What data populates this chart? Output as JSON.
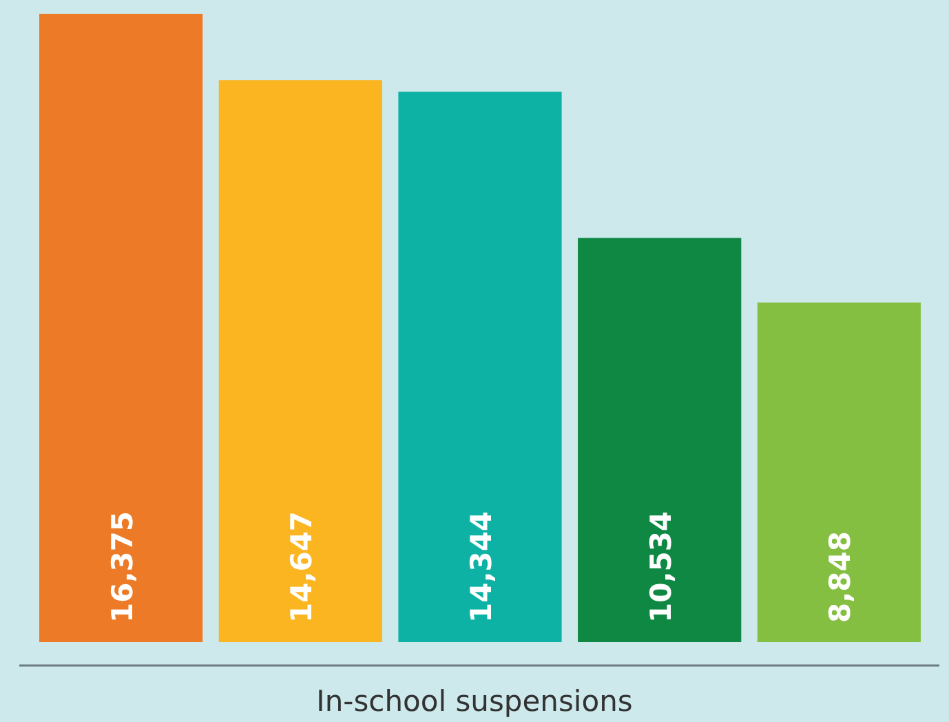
{
  "chart_data": {
    "type": "bar",
    "xlabel": "In-school suspensions",
    "categories": [
      null,
      null,
      null,
      null,
      null
    ],
    "values": [
      16375,
      14647,
      14344,
      10534,
      8848
    ],
    "colors": [
      "#ec7a26",
      "#fbb520",
      "#0db2a5",
      "#0e8842",
      "#84bf41"
    ],
    "value_labels": [
      "16,375",
      "14,647",
      "14,344",
      "10,534",
      "8,848"
    ]
  }
}
